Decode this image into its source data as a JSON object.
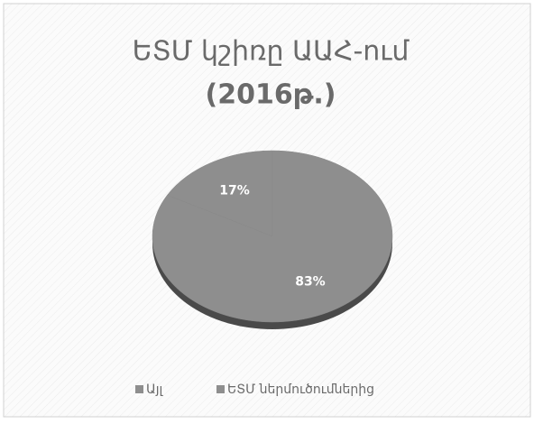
{
  "chart_data": {
    "type": "pie",
    "title": [
      "ԵՏՄ կշիռը ԱԱՀ-ում",
      "(2016թ.)"
    ],
    "categories": [
      "Այլ",
      "ԵՏՄ ներմուծումներից"
    ],
    "values": [
      17,
      83
    ],
    "value_labels": [
      "17%",
      "83%"
    ],
    "colors": [
      "#8e8e8e",
      "#8e8e8e"
    ],
    "legend": "bottom"
  }
}
